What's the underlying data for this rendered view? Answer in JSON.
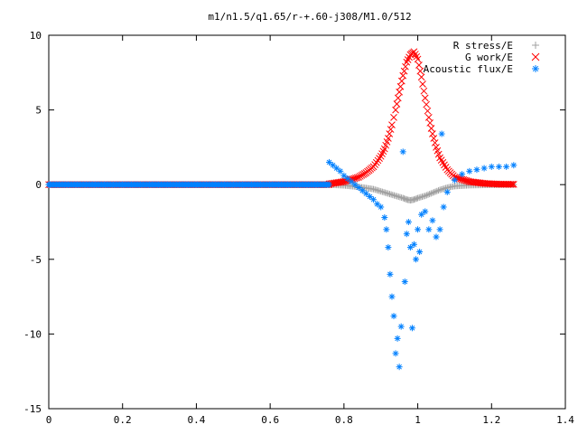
{
  "chart_data": {
    "type": "scatter",
    "title": "m1/n1.5/q1.65/r-+.60-j308/M1.0/512",
    "xlabel": "",
    "ylabel": "",
    "xlim": [
      0,
      1.4
    ],
    "ylim": [
      -15,
      10
    ],
    "x_ticks": [
      "0",
      "0.2",
      "0.4",
      "0.6",
      "0.8",
      "1",
      "1.2",
      "1.4"
    ],
    "y_ticks": [
      "10",
      "5",
      "0",
      "-5",
      "-10",
      "-15"
    ],
    "grid": false,
    "legend_position": "top-right",
    "series": [
      {
        "name": "R stress/E",
        "marker": "plus",
        "color": "#a0a0a0",
        "x": [
          0.76,
          0.8,
          0.84,
          0.88,
          0.9,
          0.92,
          0.94,
          0.96,
          0.97,
          0.98,
          0.99,
          1.0,
          1.02,
          1.04,
          1.06,
          1.08,
          1.1,
          1.14,
          1.18,
          1.22,
          1.26
        ],
        "y": [
          0.0,
          -0.05,
          -0.15,
          -0.3,
          -0.45,
          -0.6,
          -0.75,
          -0.9,
          -1.0,
          -1.05,
          -1.0,
          -0.9,
          -0.75,
          -0.55,
          -0.35,
          -0.2,
          -0.1,
          -0.04,
          -0.02,
          -0.01,
          0.0
        ]
      },
      {
        "name": "G work/E",
        "marker": "cross",
        "color": "#ff0000",
        "x": [
          0.76,
          0.8,
          0.84,
          0.86,
          0.88,
          0.9,
          0.91,
          0.92,
          0.93,
          0.94,
          0.95,
          0.96,
          0.97,
          0.98,
          0.99,
          1.0,
          1.01,
          1.02,
          1.03,
          1.04,
          1.05,
          1.06,
          1.08,
          1.1,
          1.14,
          1.18,
          1.22,
          1.26
        ],
        "y": [
          0.05,
          0.2,
          0.5,
          0.8,
          1.2,
          1.9,
          2.4,
          3.1,
          4.0,
          5.0,
          6.2,
          7.3,
          8.2,
          8.7,
          8.9,
          8.4,
          7.2,
          5.8,
          4.5,
          3.4,
          2.5,
          1.8,
          1.0,
          0.5,
          0.2,
          0.08,
          0.03,
          0.02
        ]
      },
      {
        "name": "Acoustic flux/E",
        "marker": "star",
        "color": "#0080ff",
        "x": [
          0.76,
          0.77,
          0.78,
          0.79,
          0.8,
          0.81,
          0.82,
          0.83,
          0.84,
          0.85,
          0.86,
          0.87,
          0.88,
          0.89,
          0.9,
          0.91,
          0.915,
          0.92,
          0.925,
          0.93,
          0.935,
          0.94,
          0.945,
          0.95,
          0.955,
          0.96,
          0.965,
          0.97,
          0.975,
          0.98,
          0.985,
          0.99,
          0.995,
          1.0,
          1.005,
          1.01,
          1.02,
          1.03,
          1.04,
          1.05,
          1.06,
          1.065,
          1.07,
          1.08,
          1.1,
          1.12,
          1.14,
          1.16,
          1.18,
          1.2,
          1.22,
          1.24,
          1.26
        ],
        "y": [
          1.5,
          1.3,
          1.1,
          0.9,
          0.6,
          0.4,
          0.2,
          0.0,
          -0.2,
          -0.4,
          -0.6,
          -0.8,
          -1.0,
          -1.3,
          -1.5,
          -2.2,
          -3.0,
          -4.2,
          -6.0,
          -7.5,
          -8.8,
          -11.3,
          -10.3,
          -12.2,
          -9.5,
          2.2,
          -6.5,
          -3.3,
          -2.5,
          -4.2,
          -9.6,
          -4.0,
          -5.0,
          -3.0,
          -4.5,
          -2.0,
          -1.8,
          -3.0,
          -2.4,
          -3.5,
          -3.0,
          3.4,
          -1.5,
          -0.5,
          0.3,
          0.7,
          0.9,
          1.0,
          1.1,
          1.2,
          1.2,
          1.2,
          1.3
        ]
      }
    ]
  }
}
